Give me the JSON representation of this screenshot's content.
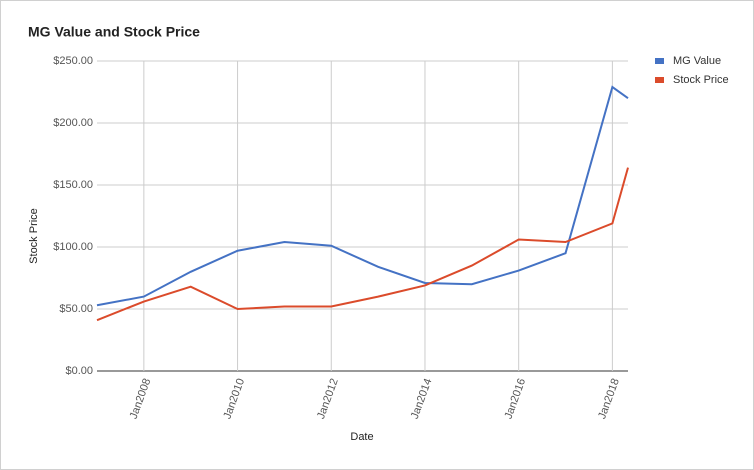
{
  "chart_data": {
    "type": "line",
    "title": "MG Value and Stock Price",
    "x_label": "Date",
    "y_label": "Stock Price",
    "x": [
      "2007-01",
      "2008-01",
      "2009-01",
      "2010-01",
      "2011-01",
      "2012-01",
      "2013-01",
      "2014-01",
      "2015-01",
      "2016-01",
      "2017-01",
      "2018-01",
      "2018-05"
    ],
    "series": [
      {
        "name": "MG Value",
        "color": "#4472c4",
        "values": [
          53,
          60,
          80,
          97,
          104,
          101,
          84,
          71,
          70,
          81,
          95,
          229,
          220
        ]
      },
      {
        "name": "Stock Price",
        "color": "#db4b2b",
        "values": [
          41,
          56,
          68,
          50,
          52,
          52,
          60,
          69,
          85,
          106,
          104,
          119,
          164
        ]
      }
    ],
    "xlim": [
      "2007-01",
      "2018-05"
    ],
    "xticks": [
      {
        "value": "2008-01",
        "label": "Jan2008"
      },
      {
        "value": "2010-01",
        "label": "Jan2010"
      },
      {
        "value": "2012-01",
        "label": "Jan2012"
      },
      {
        "value": "2014-01",
        "label": "Jan2014"
      },
      {
        "value": "2016-01",
        "label": "Jan2016"
      },
      {
        "value": "2018-01",
        "label": "Jan2018"
      }
    ],
    "ylim": [
      0,
      250
    ],
    "yticks": [
      {
        "value": 0,
        "label": "$0.00"
      },
      {
        "value": 50,
        "label": "$50.00"
      },
      {
        "value": 100,
        "label": "$100.00"
      },
      {
        "value": 150,
        "label": "$150.00"
      },
      {
        "value": 200,
        "label": "$200.00"
      },
      {
        "value": 250,
        "label": "$250.00"
      }
    ],
    "grid": true,
    "legend": "right"
  }
}
